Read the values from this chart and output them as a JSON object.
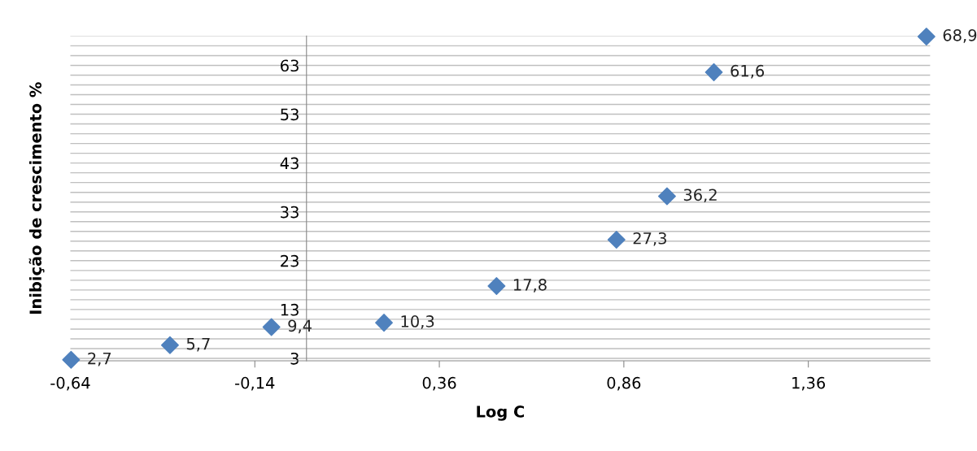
{
  "chart_data": {
    "type": "scatter",
    "xlabel": "Log C",
    "ylabel": "Inibição de crescimento %",
    "x": [
      -0.638,
      -0.37,
      -0.095,
      0.21,
      0.515,
      0.84,
      0.977,
      1.104,
      1.68
    ],
    "series": [
      {
        "color": "#4f81bd",
        "values": [
          2.7,
          5.7,
          9.4,
          10.3,
          17.8,
          27.3,
          36.2,
          61.6,
          68.9
        ]
      }
    ],
    "value_labels": [
      "2,7",
      "5,7",
      "9,4",
      "10,3",
      "17,8",
      "27,3",
      "36,2",
      "61,6",
      "68,9"
    ],
    "xlim": [
      -0.64,
      1.69
    ],
    "ylim": [
      2.5,
      69
    ],
    "xticks": [
      {
        "value": -0.64,
        "label": "-0,64"
      },
      {
        "value": -0.14,
        "label": "-0,14"
      },
      {
        "value": 0.36,
        "label": "0,36"
      },
      {
        "value": 0.86,
        "label": "0,86"
      },
      {
        "value": 1.36,
        "label": "1,36"
      }
    ],
    "yticks": [
      3,
      {
        "value": 5,
        "label": null
      },
      {
        "value": 7,
        "label": null
      },
      {
        "value": 9,
        "label": null
      },
      {
        "value": 11,
        "label": null
      },
      13,
      {
        "value": 15,
        "label": null
      },
      {
        "value": 17,
        "label": null
      },
      {
        "value": 19,
        "label": null
      },
      {
        "value": 21,
        "label": null
      },
      23,
      {
        "value": 25,
        "label": null
      },
      {
        "value": 27,
        "label": null
      },
      {
        "value": 29,
        "label": null
      },
      {
        "value": 31,
        "label": null
      },
      33,
      {
        "value": 35,
        "label": null
      },
      {
        "value": 37,
        "label": null
      },
      {
        "value": 39,
        "label": null
      },
      {
        "value": 41,
        "label": null
      },
      43,
      {
        "value": 45,
        "label": null
      },
      {
        "value": 47,
        "label": null
      },
      {
        "value": 49,
        "label": null
      },
      {
        "value": 51,
        "label": null
      },
      53,
      {
        "value": 55,
        "label": null
      },
      {
        "value": 57,
        "label": null
      },
      {
        "value": 59,
        "label": null
      },
      {
        "value": 61,
        "label": null
      },
      63,
      {
        "value": 65,
        "label": null
      },
      {
        "value": 67,
        "label": null
      },
      {
        "value": 69,
        "label": null
      }
    ],
    "grid": "y",
    "marker": "diamond",
    "legend": false
  }
}
